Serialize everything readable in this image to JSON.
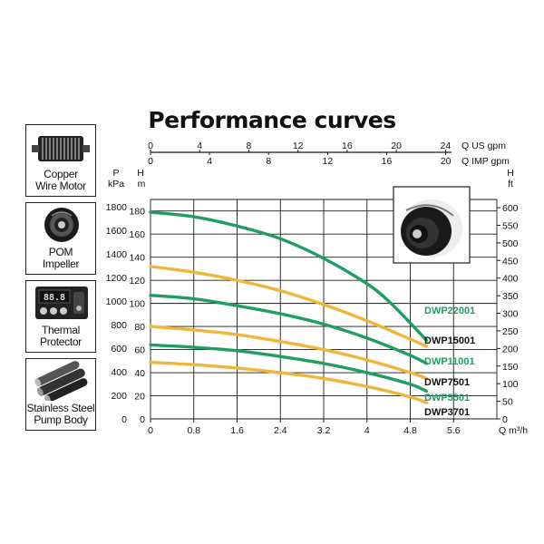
{
  "title": "Performance curves",
  "features": [
    {
      "label_lines": [
        "Copper",
        "Wire Motor"
      ],
      "icon": "motor-icon"
    },
    {
      "label_lines": [
        "POM",
        "Impeller"
      ],
      "icon": "impeller-icon"
    },
    {
      "label_lines": [
        "Thermal",
        "Protector"
      ],
      "icon": "thermal-protector-icon",
      "display": "88.8"
    },
    {
      "label_lines": [
        "Stainless Steel",
        "Pump Body"
      ],
      "icon": "pipes-icon"
    }
  ],
  "colors": {
    "green": "#1e9e62",
    "orange": "#f0b63a",
    "grid": "#1a1a1a",
    "text": "#111111"
  },
  "chart_data": {
    "type": "line",
    "title": "Performance curves",
    "x_axis": {
      "label": "Q m³/h",
      "ticks": [
        0,
        0.8,
        1.6,
        2.4,
        3.2,
        4,
        4.8,
        5.6
      ],
      "range": [
        0,
        6.4
      ]
    },
    "top_axis_us": {
      "label": "Q US gpm",
      "ticks": [
        0,
        4,
        8,
        12,
        16,
        20,
        24
      ]
    },
    "top_axis_imp": {
      "label": "Q IMP gpm",
      "ticks": [
        0,
        4,
        8,
        12,
        16,
        20
      ]
    },
    "y_axis_head_m": {
      "label": "H",
      "unit": "m",
      "ticks": [
        0,
        20,
        40,
        60,
        80,
        100,
        120,
        140,
        160,
        180
      ],
      "range": [
        0,
        190
      ]
    },
    "y_axis_pressure": {
      "label": "P",
      "unit": "kPa",
      "ticks": [
        0,
        200,
        400,
        600,
        800,
        1000,
        1200,
        1400,
        1600,
        1800
      ]
    },
    "y_axis_head_ft": {
      "label": "H",
      "unit": "ft",
      "ticks": [
        0,
        50,
        100,
        150,
        200,
        250,
        300,
        350,
        400,
        450,
        500,
        550,
        600
      ]
    },
    "grid": true,
    "series": [
      {
        "name": "DWP22001",
        "color": "#1e9e62",
        "x": [
          0,
          0.8,
          1.6,
          2.4,
          3.2,
          4.0,
          4.4,
          4.8,
          5.1
        ],
        "y": [
          179,
          175,
          167,
          156,
          139,
          117,
          102,
          83,
          68
        ]
      },
      {
        "name": "DWP15001",
        "color": "#f0b63a",
        "x": [
          0,
          0.8,
          1.6,
          2.4,
          3.2,
          4.0,
          4.8,
          5.1
        ],
        "y": [
          132,
          127,
          120,
          111,
          99,
          85,
          69,
          63
        ]
      },
      {
        "name": "DWP11001",
        "color": "#1e9e62",
        "x": [
          0,
          0.8,
          1.6,
          2.4,
          3.2,
          4.0,
          4.8,
          5.1
        ],
        "y": [
          107,
          104,
          98,
          91,
          82,
          70,
          55,
          48
        ]
      },
      {
        "name": "DWP7501",
        "color": "#f0b63a",
        "x": [
          0,
          0.8,
          1.6,
          2.4,
          3.2,
          4.0,
          4.8,
          5.1
        ],
        "y": [
          80,
          77,
          73,
          67,
          60,
          51,
          40,
          35
        ]
      },
      {
        "name": "DWP5501",
        "color": "#1e9e62",
        "x": [
          0,
          0.8,
          1.6,
          2.4,
          3.2,
          4.0,
          4.8,
          5.1
        ],
        "y": [
          64,
          62,
          59,
          54,
          48,
          40,
          30,
          24
        ]
      },
      {
        "name": "DWP3701",
        "color": "#f0b63a",
        "x": [
          0,
          0.8,
          1.6,
          2.4,
          3.2,
          4.0,
          4.8,
          5.1
        ],
        "y": [
          49,
          47,
          44,
          40,
          35,
          28,
          19,
          14
        ]
      }
    ]
  }
}
